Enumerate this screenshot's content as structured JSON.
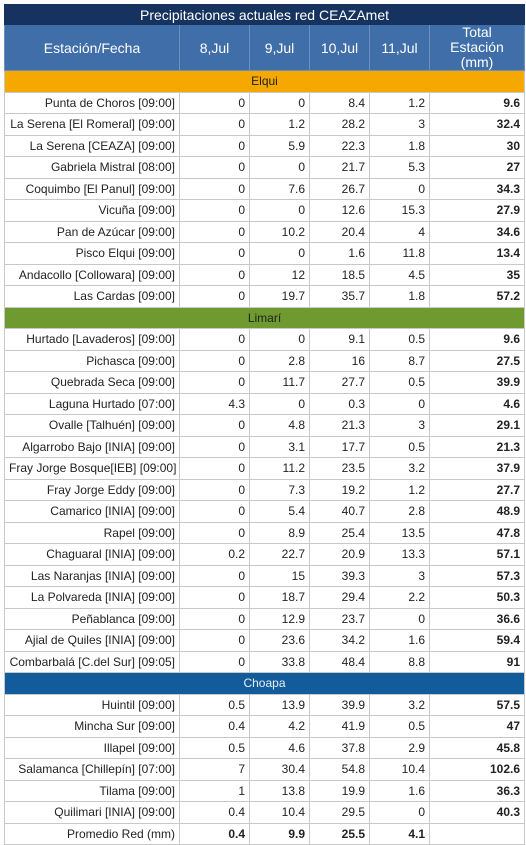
{
  "title": "Precipitaciones actuales red CEAZAmet",
  "columns": [
    "Estación/Fecha",
    "8,Jul",
    "9,Jul",
    "10,Jul",
    "11,Jul",
    "Total Estación (mm)"
  ],
  "sections": [
    {
      "name": "Elqui",
      "rows": [
        [
          "Punta de Choros [09:00]",
          0,
          0,
          8.4,
          1.2,
          9.6
        ],
        [
          "La Serena [El Romeral] [09:00]",
          0,
          1.2,
          28.2,
          3,
          32.4
        ],
        [
          "La Serena [CEAZA] [09:00]",
          0,
          5.9,
          22.3,
          1.8,
          30
        ],
        [
          "Gabriela Mistral [08:00]",
          0,
          0,
          21.7,
          5.3,
          27
        ],
        [
          "Coquimbo [El Panul] [09:00]",
          0,
          7.6,
          26.7,
          0,
          34.3
        ],
        [
          "Vicuña [09:00]",
          0,
          0,
          12.6,
          15.3,
          27.9
        ],
        [
          "Pan de Azúcar [09:00]",
          0,
          10.2,
          20.4,
          4,
          34.6
        ],
        [
          "Pisco Elqui [09:00]",
          0,
          0,
          1.6,
          11.8,
          13.4
        ],
        [
          "Andacollo [Collowara] [09:00]",
          0,
          12,
          18.5,
          4.5,
          35
        ],
        [
          "Las Cardas [09:00]",
          0,
          19.7,
          35.7,
          1.8,
          57.2
        ]
      ]
    },
    {
      "name": "Limarí",
      "rows": [
        [
          "Hurtado [Lavaderos] [09:00]",
          0,
          0,
          9.1,
          0.5,
          9.6
        ],
        [
          "Pichasca [09:00]",
          0,
          2.8,
          16,
          8.7,
          27.5
        ],
        [
          "Quebrada Seca [09:00]",
          0,
          11.7,
          27.7,
          0.5,
          39.9
        ],
        [
          "Laguna Hurtado [07:00]",
          4.3,
          0,
          0.3,
          0,
          4.6
        ],
        [
          "Ovalle [Talhuén] [09:00]",
          0,
          4.8,
          21.3,
          3,
          29.1
        ],
        [
          "Algarrobo Bajo [INIA] [09:00]",
          0,
          3.1,
          17.7,
          0.5,
          21.3
        ],
        [
          "Fray Jorge Bosque[IEB] [09:00]",
          0,
          11.2,
          23.5,
          3.2,
          37.9
        ],
        [
          "Fray Jorge Eddy [09:00]",
          0,
          7.3,
          19.2,
          1.2,
          27.7
        ],
        [
          "Camarico [INIA] [09:00]",
          0,
          5.4,
          40.7,
          2.8,
          48.9
        ],
        [
          "Rapel [09:00]",
          0,
          8.9,
          25.4,
          13.5,
          47.8
        ],
        [
          "Chaguaral [INIA] [09:00]",
          0.2,
          22.7,
          20.9,
          13.3,
          57.1
        ],
        [
          "Las Naranjas [INIA] [09:00]",
          0,
          15,
          39.3,
          3,
          57.3
        ],
        [
          "La Polvareda [INIA] [09:00]",
          0,
          18.7,
          29.4,
          2.2,
          50.3
        ],
        [
          "Peñablanca [09:00]",
          0,
          12.9,
          23.7,
          0,
          36.6
        ],
        [
          "Ajial de Quiles [INIA] [09:00]",
          0,
          23.6,
          34.2,
          1.6,
          59.4
        ],
        [
          "Combarbalá [C.del Sur] [09:05]",
          0,
          33.8,
          48.4,
          8.8,
          91
        ]
      ]
    },
    {
      "name": "Choapa",
      "rows": [
        [
          "Huintil [09:00]",
          0.5,
          13.9,
          39.9,
          3.2,
          57.5
        ],
        [
          "Mincha Sur [09:00]",
          0.4,
          4.2,
          41.9,
          0.5,
          47
        ],
        [
          "Illapel [09:00]",
          0.5,
          4.6,
          37.8,
          2.9,
          45.8
        ],
        [
          "Salamanca [Chillepín] [07:00]",
          7,
          30.4,
          54.8,
          10.4,
          102.6
        ],
        [
          "Tilama [09:00]",
          1,
          13.8,
          19.9,
          1.6,
          36.3
        ],
        [
          "Quilimari [INIA] [09:00]",
          0.4,
          10.4,
          29.5,
          0,
          40.3
        ]
      ]
    }
  ],
  "footer": [
    "Promedio Red (mm)",
    0.4,
    9.9,
    25.5,
    4.1
  ]
}
